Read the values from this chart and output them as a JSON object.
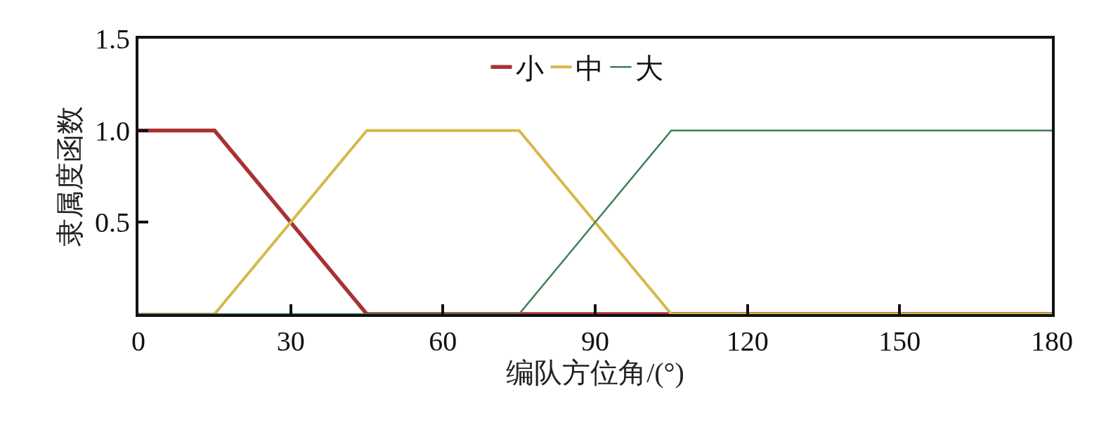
{
  "chart_data": {
    "type": "line",
    "xlabel": "编队方位角/(°)",
    "ylabel": "隶属度函数",
    "xlim": [
      0,
      180
    ],
    "xticks": [
      0,
      30,
      60,
      90,
      120,
      150,
      180
    ],
    "ylim": [
      0,
      1.5
    ],
    "yticks": [
      {
        "value": 0.5,
        "label": "0.5"
      },
      {
        "value": 1.0,
        "label": "1.0"
      },
      {
        "value": 1.5,
        "label": "1.5"
      }
    ],
    "series": [
      {
        "name": "小",
        "color": "#a83232",
        "x": [
          0,
          15,
          45,
          180
        ],
        "values": [
          1,
          1,
          0,
          0
        ]
      },
      {
        "name": "中",
        "color": "#d8b84a",
        "x": [
          0,
          15,
          45,
          75,
          105,
          180
        ],
        "values": [
          0,
          0,
          1,
          1,
          0,
          0
        ]
      },
      {
        "name": "大",
        "color": "#3f7f55",
        "x": [
          0,
          75,
          105,
          180
        ],
        "values": [
          0,
          0,
          1,
          1
        ]
      }
    ],
    "legend": "top",
    "marker": "none",
    "line_style": "solid"
  }
}
